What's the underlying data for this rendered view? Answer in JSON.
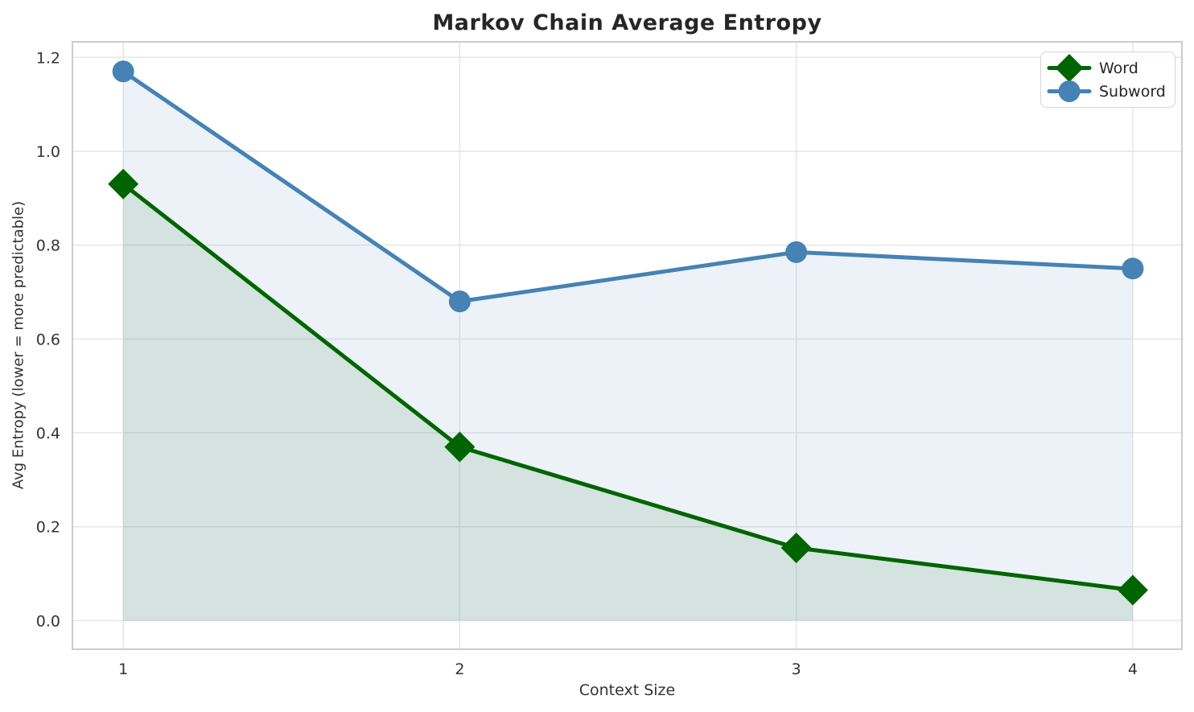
{
  "chart_data": {
    "type": "line",
    "title": "Markov Chain Average Entropy",
    "xlabel": "Context Size",
    "ylabel": "Avg Entropy (lower = more predictable)",
    "x": [
      1,
      2,
      3,
      4
    ],
    "x_tick_labels": [
      "1",
      "2",
      "3",
      "4"
    ],
    "y_ticks": [
      0.0,
      0.2,
      0.4,
      0.6,
      0.8,
      1.0,
      1.2
    ],
    "y_tick_labels": [
      "0.0",
      "0.2",
      "0.4",
      "0.6",
      "0.8",
      "1.0",
      "1.2"
    ],
    "xlim": [
      0.849,
      4.146
    ],
    "ylim": [
      -0.061,
      1.233
    ],
    "grid": true,
    "legend": {
      "position": "upper right",
      "entries": [
        "Word",
        "Subword"
      ]
    },
    "series": [
      {
        "name": "Word",
        "marker": "diamond",
        "color": "#006400",
        "fill_opacity": 0.1,
        "values": [
          0.93,
          0.37,
          0.155,
          0.065
        ]
      },
      {
        "name": "Subword",
        "marker": "circle",
        "color": "#4682B4",
        "fill_opacity": 0.1,
        "values": [
          1.17,
          0.68,
          0.785,
          0.75
        ]
      }
    ]
  },
  "colors": {
    "background": "#ffffff",
    "grid": "#e6e6e6",
    "spine": "#cccccc",
    "tick_label": "#333333",
    "title": "#262626"
  }
}
